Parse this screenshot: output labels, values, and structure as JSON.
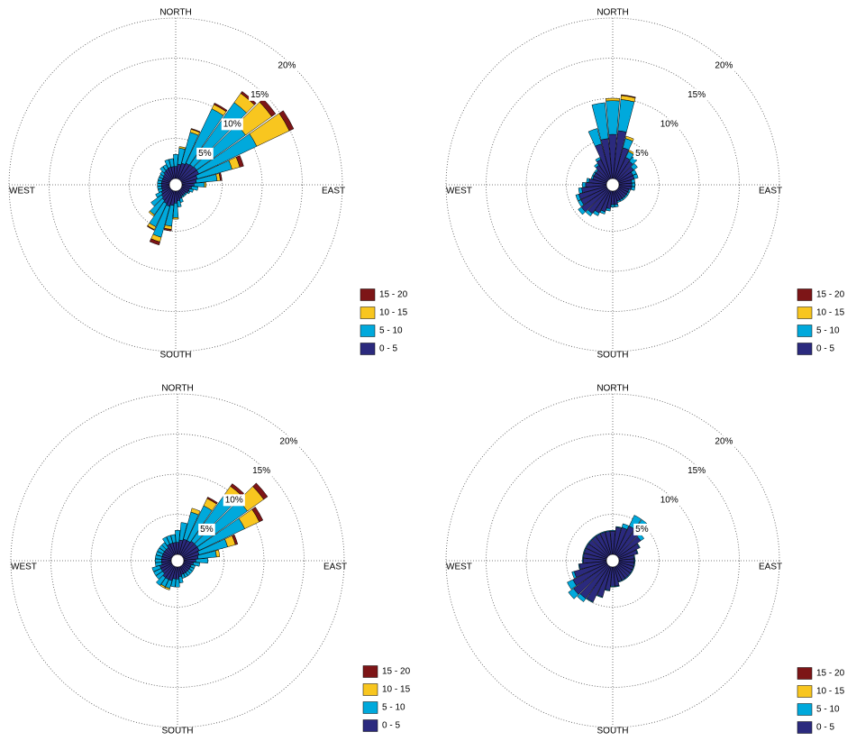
{
  "chart_data": [
    {
      "type": "windrose",
      "directions": [
        0,
        10,
        20,
        30,
        40,
        50,
        60,
        70,
        80,
        90,
        100,
        110,
        120,
        130,
        140,
        150,
        160,
        170,
        180,
        190,
        200,
        210,
        220,
        230,
        240,
        250,
        260,
        270,
        280,
        290,
        300,
        310,
        320,
        330,
        340,
        350
      ],
      "compass": [
        "NORTH",
        "EAST",
        "SOUTH",
        "WEST"
      ],
      "rlim": [
        0,
        20
      ],
      "rticks": [
        {
          "value": 5,
          "label": "5%"
        },
        {
          "value": 10,
          "label": "10%"
        },
        {
          "value": 15,
          "label": "15%"
        },
        {
          "value": 20,
          "label": "20%"
        }
      ],
      "series": [
        {
          "name": "0 - 5",
          "color": "#2b2a7e",
          "values": [
            1.5,
            1.8,
            2,
            2.2,
            2.3,
            2.4,
            2.4,
            2,
            1.8,
            1.5,
            1.2,
            1,
            1,
            0.8,
            0.8,
            0.8,
            1,
            1.2,
            1.5,
            1.8,
            2,
            1.8,
            1.6,
            1.4,
            1.2,
            1,
            1,
            1,
            1,
            1,
            1,
            1.1,
            1.3,
            1.4,
            1.5,
            1.5
          ]
        },
        {
          "name": "5 - 10",
          "color": "#00a9dc",
          "values": [
            1.5,
            2,
            4,
            7.5,
            9.5,
            7.5,
            8,
            4.5,
            2.6,
            1.3,
            0.8,
            0.5,
            0.2,
            0.2,
            0.2,
            0.2,
            0.5,
            0.8,
            1.8,
            2.6,
            4,
            3.2,
            2.2,
            1.6,
            0.8,
            0.5,
            0.5,
            0.5,
            0.5,
            0.5,
            0.5,
            0.5,
            0.7,
            0.6,
            1,
            1
          ]
        },
        {
          "name": "10 - 15",
          "color": "#f8c61f",
          "values": [
            0,
            0.2,
            0.4,
            0.6,
            1.4,
            4,
            4.5,
            1,
            0.4,
            0.2,
            0,
            0,
            0,
            0,
            0,
            0,
            0,
            0,
            0.2,
            0.4,
            0.6,
            0.4,
            0.2,
            0,
            0,
            0,
            0,
            0,
            0,
            0,
            0,
            0,
            0,
            0,
            0,
            0
          ]
        },
        {
          "name": "15 - 20",
          "color": "#7d1517",
          "values": [
            0,
            0,
            0.1,
            0.2,
            0.3,
            0.6,
            0.6,
            0.5,
            0.2,
            0,
            0,
            0,
            0,
            0,
            0,
            0,
            0,
            0,
            0,
            0.2,
            0.4,
            0.1,
            0,
            0,
            0,
            0,
            0,
            0,
            0,
            0,
            0,
            0,
            0,
            0,
            0,
            0
          ]
        }
      ]
    },
    {
      "type": "windrose",
      "directions": [
        0,
        10,
        20,
        30,
        40,
        50,
        60,
        70,
        80,
        90,
        100,
        110,
        120,
        130,
        140,
        150,
        160,
        170,
        180,
        190,
        200,
        210,
        220,
        230,
        240,
        250,
        260,
        270,
        280,
        290,
        300,
        310,
        320,
        330,
        340,
        350
      ],
      "compass": [
        "NORTH",
        "EAST",
        "SOUTH",
        "WEST"
      ],
      "rlim": [
        0,
        20
      ],
      "rticks": [
        {
          "value": 5,
          "label": "5%"
        },
        {
          "value": 10,
          "label": "10%"
        },
        {
          "value": 15,
          "label": "15%"
        },
        {
          "value": 20,
          "label": "20%"
        }
      ],
      "series": [
        {
          "name": "0 - 5",
          "color": "#2b2a7e",
          "values": [
            5.5,
            6,
            4,
            3,
            2.8,
            2.4,
            2,
            2,
            1.6,
            1.6,
            1.6,
            1.3,
            1.3,
            1.3,
            1.3,
            1.3,
            1.3,
            1.7,
            1.7,
            2.2,
            2.7,
            3.1,
            3.6,
            4,
            3.6,
            3.6,
            3.1,
            2.6,
            2.2,
            1.8,
            1.8,
            1.8,
            2.2,
            2.7,
            4.5,
            5
          ]
        },
        {
          "name": "5 - 10",
          "color": "#00a9dc",
          "values": [
            4.2,
            3.9,
            1.2,
            0.8,
            0.7,
            0.6,
            0.5,
            0.5,
            0.4,
            0.4,
            0.4,
            0.2,
            0.2,
            0.2,
            0.2,
            0.2,
            0.2,
            0.3,
            0.3,
            0.3,
            0.3,
            0.4,
            0.4,
            0.5,
            0.4,
            0.4,
            0.4,
            0.4,
            0.3,
            0.2,
            0.2,
            0.2,
            0.3,
            0.3,
            2,
            4.5
          ]
        },
        {
          "name": "10 - 15",
          "color": "#f8c61f",
          "values": [
            0.3,
            0.5,
            0.3,
            0.2,
            0,
            0,
            0,
            0,
            0,
            0,
            0,
            0,
            0,
            0,
            0,
            0,
            0,
            0,
            0,
            0,
            0,
            0,
            0,
            0,
            0,
            0,
            0,
            0,
            0,
            0,
            0,
            0,
            0,
            0,
            0,
            0
          ]
        },
        {
          "name": "15 - 20",
          "color": "#7d1517",
          "values": [
            0,
            0.1,
            0,
            0,
            0,
            0,
            0,
            0,
            0,
            0,
            0,
            0,
            0,
            0,
            0,
            0,
            0,
            0,
            0,
            0,
            0,
            0,
            0,
            0,
            0,
            0,
            0,
            0,
            0,
            0,
            0,
            0,
            0,
            0,
            0,
            0
          ]
        }
      ]
    },
    {
      "type": "windrose",
      "directions": [
        0,
        10,
        20,
        30,
        40,
        50,
        60,
        70,
        80,
        90,
        100,
        110,
        120,
        130,
        140,
        150,
        160,
        170,
        180,
        190,
        200,
        210,
        220,
        230,
        240,
        250,
        260,
        270,
        280,
        290,
        300,
        310,
        320,
        330,
        340,
        350
      ],
      "compass": [
        "NORTH",
        "EAST",
        "SOUTH",
        "WEST"
      ],
      "rlim": [
        0,
        20
      ],
      "rticks": [
        {
          "value": 5,
          "label": "5%"
        },
        {
          "value": 10,
          "label": "10%"
        },
        {
          "value": 15,
          "label": "15%"
        },
        {
          "value": 20,
          "label": "20%"
        }
      ],
      "series": [
        {
          "name": "0 - 5",
          "color": "#2b2a7e",
          "values": [
            1.5,
            1.8,
            2,
            2,
            2.2,
            2.2,
            2.2,
            2,
            1.8,
            1.5,
            1.2,
            1,
            1,
            1,
            1,
            1,
            1,
            1.2,
            1.5,
            1.5,
            1.8,
            1.8,
            1.8,
            1.5,
            1.5,
            1.5,
            1.2,
            1.2,
            1.2,
            1.2,
            1.2,
            1.2,
            1.2,
            1.5,
            1.5,
            1.5
          ]
        },
        {
          "name": "5 - 10",
          "color": "#00a9dc",
          "values": [
            1.5,
            2.2,
            3.5,
            4.8,
            6.9,
            7.7,
            6.3,
            3.7,
            2.3,
            1.5,
            0.8,
            0.5,
            0.5,
            0.5,
            0.5,
            0.5,
            0.5,
            0.8,
            1,
            1,
            1,
            1,
            1.2,
            1,
            1,
            1,
            0.8,
            0.8,
            0.8,
            0.8,
            0.8,
            0.8,
            0.8,
            1,
            1,
            1
          ]
        },
        {
          "name": "10 - 15",
          "color": "#f8c61f",
          "values": [
            0,
            0,
            0.5,
            1,
            1.5,
            2.5,
            2,
            1,
            0.4,
            0,
            0,
            0,
            0,
            0,
            0,
            0,
            0,
            0,
            0,
            0,
            0.2,
            0.2,
            0,
            0,
            0,
            0,
            0,
            0,
            0,
            0,
            0,
            0,
            0,
            0,
            0,
            0
          ]
        },
        {
          "name": "15 - 20",
          "color": "#7d1517",
          "values": [
            0,
            0,
            0,
            0.2,
            0.4,
            0.6,
            0.5,
            0.3,
            0,
            0,
            0,
            0,
            0,
            0,
            0,
            0,
            0,
            0,
            0,
            0,
            0,
            0,
            0,
            0,
            0,
            0,
            0,
            0,
            0,
            0,
            0,
            0,
            0,
            0,
            0,
            0
          ]
        }
      ]
    },
    {
      "type": "windrose",
      "directions": [
        0,
        10,
        20,
        30,
        40,
        50,
        60,
        70,
        80,
        90,
        100,
        110,
        120,
        130,
        140,
        150,
        160,
        170,
        180,
        190,
        200,
        210,
        220,
        230,
        240,
        250,
        260,
        270,
        280,
        290,
        300,
        310,
        320,
        330,
        340,
        350
      ],
      "compass": [
        "NORTH",
        "EAST",
        "SOUTH",
        "WEST"
      ],
      "rlim": [
        0,
        20
      ],
      "rticks": [
        {
          "value": 5,
          "label": "5%"
        },
        {
          "value": 10,
          "label": "10%"
        },
        {
          "value": 15,
          "label": "15%"
        },
        {
          "value": 20,
          "label": "20%"
        }
      ],
      "series": [
        {
          "name": "0 - 5",
          "color": "#2b2a7e",
          "values": [
            2.9,
            3.4,
            3.5,
            4,
            4.3,
            3.5,
            2.9,
            2.4,
            1.9,
            1.9,
            1.9,
            1.9,
            1.9,
            1.9,
            1.9,
            1.9,
            1.9,
            2.4,
            2.4,
            2.9,
            3.9,
            4.9,
            5,
            5.2,
            4.7,
            4.2,
            3.4,
            2.9,
            2.9,
            2.9,
            2.9,
            2.9,
            2.9,
            2.9,
            2.9,
            2.9
          ]
        },
        {
          "name": "5 - 10",
          "color": "#00a9dc",
          "values": [
            0.1,
            0.1,
            0.5,
            1.5,
            1.2,
            0.5,
            0.1,
            0.1,
            0.1,
            0.1,
            0.1,
            0.1,
            0.1,
            0.1,
            0.1,
            0.1,
            0.1,
            0.1,
            0.1,
            0.1,
            0.1,
            0.1,
            0.5,
            0.8,
            0.8,
            0.3,
            0.1,
            0.1,
            0.1,
            0.1,
            0.1,
            0.1,
            0.1,
            0.1,
            0.1,
            0.1
          ]
        },
        {
          "name": "10 - 15",
          "color": "#f8c61f",
          "values": [
            0,
            0,
            0,
            0,
            0,
            0,
            0,
            0,
            0,
            0,
            0,
            0,
            0,
            0,
            0,
            0,
            0,
            0,
            0,
            0,
            0,
            0,
            0,
            0,
            0,
            0,
            0,
            0,
            0,
            0,
            0,
            0,
            0,
            0,
            0,
            0
          ]
        },
        {
          "name": "15 - 20",
          "color": "#7d1517",
          "values": [
            0,
            0,
            0,
            0,
            0,
            0,
            0,
            0,
            0,
            0,
            0,
            0,
            0,
            0,
            0,
            0,
            0,
            0,
            0,
            0,
            0,
            0,
            0,
            0,
            0,
            0,
            0,
            0,
            0,
            0,
            0,
            0,
            0,
            0,
            0,
            0
          ]
        }
      ]
    }
  ]
}
